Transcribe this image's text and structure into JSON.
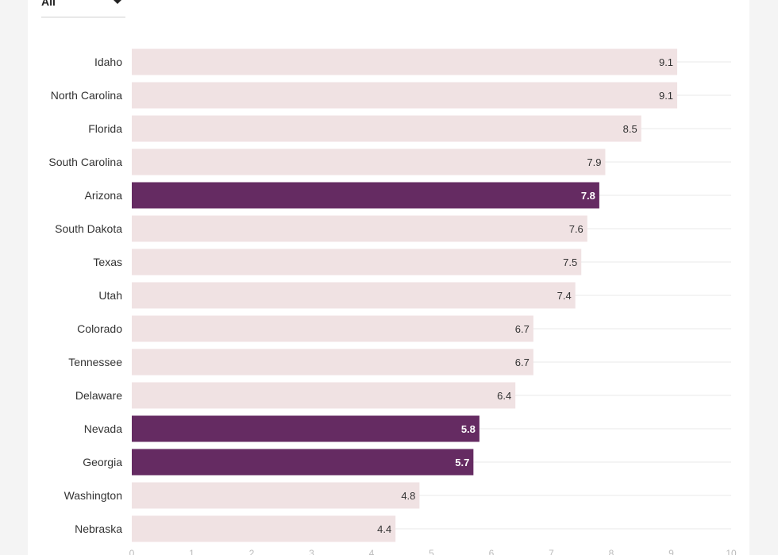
{
  "filter": {
    "selected": "All",
    "icon": "chevron-down-icon"
  },
  "colors": {
    "bar_default": "#f0e2e3",
    "bar_highlight": "#652b62",
    "gridline": "#e8e8e8",
    "label_dark": "#333333",
    "label_light": "#ffffff"
  },
  "chart_data": {
    "type": "bar",
    "orientation": "horizontal",
    "title": "",
    "xlabel": "",
    "ylabel": "",
    "xlim": [
      0,
      10
    ],
    "x_ticks": [
      0,
      1,
      2,
      3,
      4,
      5,
      6,
      7,
      8,
      9,
      10
    ],
    "grid": true,
    "categories": [
      "Idaho",
      "North Carolina",
      "Florida",
      "South Carolina",
      "Arizona",
      "South Dakota",
      "Texas",
      "Utah",
      "Colorado",
      "Tennessee",
      "Delaware",
      "Nevada",
      "Georgia",
      "Washington",
      "Nebraska"
    ],
    "values": [
      9.1,
      9.1,
      8.5,
      7.9,
      7.8,
      7.6,
      7.5,
      7.4,
      6.7,
      6.7,
      6.4,
      5.8,
      5.7,
      4.8,
      4.4
    ],
    "value_labels": [
      "9.1",
      "9.1",
      "8.5",
      "7.9",
      "7.8",
      "7.6",
      "7.5",
      "7.4",
      "6.7",
      "6.7",
      "6.4",
      "5.8",
      "5.7",
      "4.8",
      "4.4"
    ],
    "highlighted": [
      "Arizona",
      "Nevada",
      "Georgia"
    ]
  }
}
